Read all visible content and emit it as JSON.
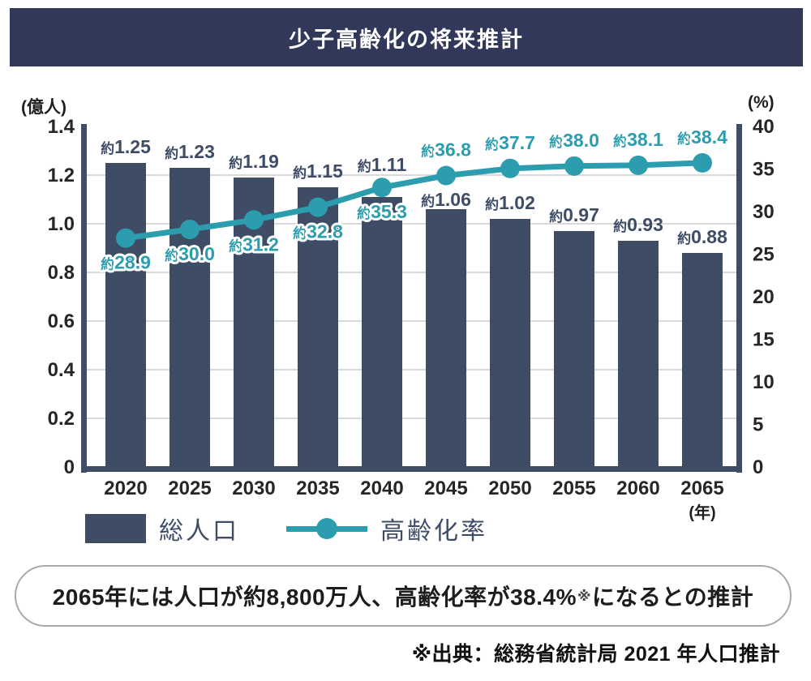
{
  "header": {
    "title": "少子高齢化の将来推計"
  },
  "chart_data": {
    "type": "bar+line",
    "categories": [
      "2020",
      "2025",
      "2030",
      "2035",
      "2040",
      "2045",
      "2050",
      "2055",
      "2060",
      "2065"
    ],
    "series": [
      {
        "name": "総人口",
        "type": "bar",
        "axis": "left",
        "unit": "億人",
        "values": [
          1.25,
          1.23,
          1.19,
          1.15,
          1.11,
          1.06,
          1.02,
          0.97,
          0.93,
          0.88
        ],
        "point_labels": [
          "約1.25",
          "約1.23",
          "約1.19",
          "約1.15",
          "約1.11",
          "約1.06",
          "約1.02",
          "約0.97",
          "約0.93",
          "約0.88"
        ]
      },
      {
        "name": "高齢化率",
        "type": "line",
        "axis": "right",
        "unit": "%",
        "values": [
          28.9,
          30.0,
          31.2,
          32.8,
          35.3,
          36.8,
          37.7,
          38.0,
          38.1,
          38.4
        ],
        "point_labels": [
          "約28.9",
          "約30.0",
          "約31.2",
          "約32.8",
          "約35.3",
          "約36.8",
          "約37.7",
          "約38.0",
          "約38.1",
          "約38.4"
        ]
      }
    ],
    "left_axis": {
      "unit_label": "(億人)",
      "min": 0,
      "max": 1.4,
      "tick_step": 0.2,
      "ticks": [
        "0",
        "0.2",
        "0.4",
        "0.6",
        "0.8",
        "1.0",
        "1.2",
        "1.4"
      ]
    },
    "right_axis": {
      "unit_label": "(%)",
      "min": 0,
      "max": 40,
      "tick_step": 5,
      "ticks": [
        "0",
        "5",
        "10",
        "15",
        "20",
        "25",
        "30",
        "35",
        "40"
      ]
    },
    "x_axis": {
      "unit_label": "(年)"
    },
    "grid": "horizontal",
    "legend_position": "bottom-left",
    "label_prefix": "約",
    "colors": {
      "bar": "#3e4c66",
      "line": "#2b9dae",
      "grid": "#d9d9d9",
      "title_band": "#32385a"
    }
  },
  "legend": {
    "items": [
      {
        "label": "総人口",
        "marker": "bar-swatch"
      },
      {
        "label": "高齢化率",
        "marker": "line-swatch"
      }
    ]
  },
  "callout": {
    "text_before": "2065年には人口が約8,800万人、高齢化率が38.4%",
    "marker": "※",
    "text_after": "になるとの推計"
  },
  "footer": {
    "source": "※出典：総務省統計局 2021 年人口推計"
  }
}
